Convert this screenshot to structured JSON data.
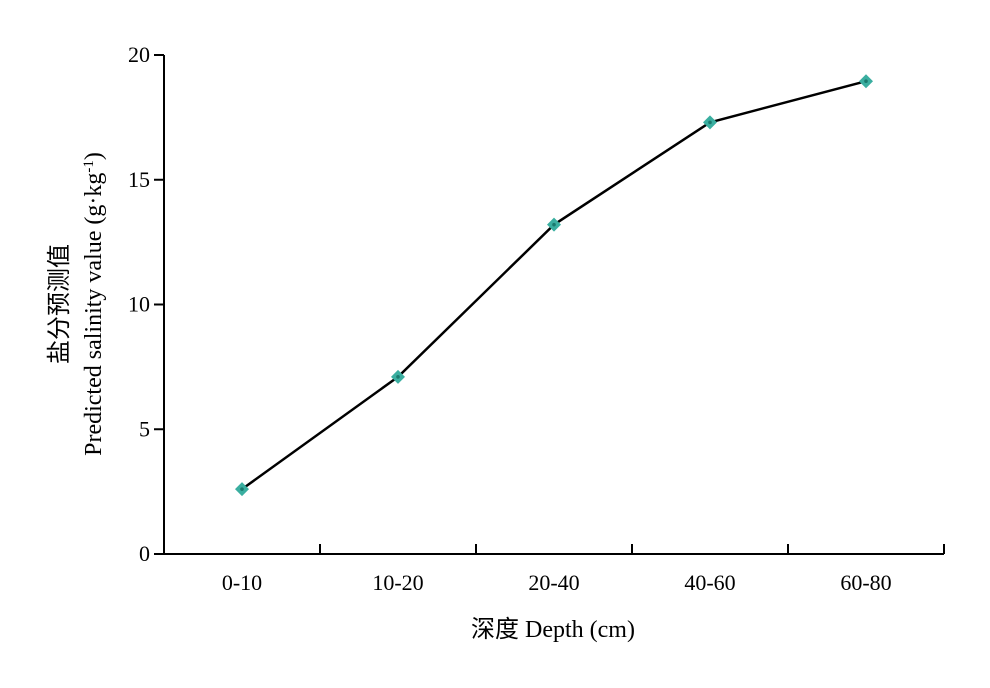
{
  "chart_data": {
    "type": "line",
    "categories": [
      "0-10",
      "10-20",
      "20-40",
      "40-60",
      "60-80"
    ],
    "series": [
      {
        "values": [
          2.6,
          7.1,
          13.2,
          17.3,
          18.95
        ]
      }
    ],
    "xlabel": "深度 Depth (cm)",
    "ylabel_cn": "盐分预测值",
    "ylabel_en_prefix": "Predicted salinity value (g·kg",
    "ylabel_en_sup": "-1",
    "ylabel_en_suffix": ")",
    "ylim": [
      0,
      20
    ],
    "yticks": [
      0,
      5,
      10,
      15,
      20
    ],
    "grid": false,
    "colors": {
      "line": "#000000",
      "marker": "#3aaea0",
      "marker_center": "#1a7a6e"
    }
  }
}
